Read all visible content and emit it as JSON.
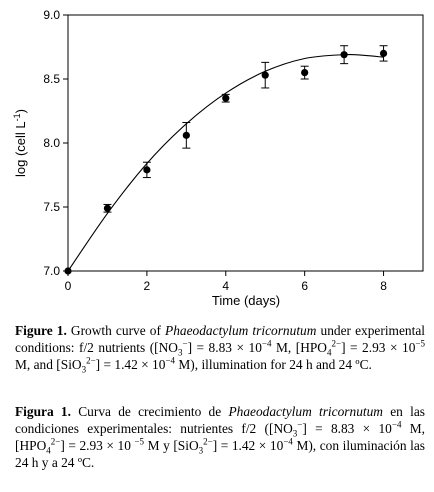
{
  "chart_data": {
    "type": "scatter",
    "xlabel": "Time (days)",
    "ylabel_main": "log (cell L",
    "ylabel_sup": "-1",
    "ylabel_close": ")",
    "xlim": [
      0,
      9
    ],
    "ylim": [
      7.0,
      9.0
    ],
    "x_ticks": [
      0,
      2,
      4,
      6,
      8
    ],
    "x_tick_labels": [
      "0",
      "2",
      "4",
      "6",
      "8"
    ],
    "y_ticks": [
      7.0,
      7.5,
      8.0,
      8.5,
      9.0
    ],
    "y_tick_labels": [
      "7.0",
      "7.5",
      "8.0",
      "8.5",
      "9.0"
    ],
    "grid": false,
    "points": [
      {
        "x": 0,
        "y": 7.0,
        "err": 0.0
      },
      {
        "x": 1,
        "y": 7.49,
        "err": 0.03
      },
      {
        "x": 2,
        "y": 7.79,
        "err": 0.06
      },
      {
        "x": 3,
        "y": 8.06,
        "err": 0.1
      },
      {
        "x": 4,
        "y": 8.35,
        "err": 0.03
      },
      {
        "x": 5,
        "y": 8.53,
        "err": 0.1
      },
      {
        "x": 6,
        "y": 8.55,
        "err": 0.05
      },
      {
        "x": 7,
        "y": 8.69,
        "err": 0.07
      },
      {
        "x": 8,
        "y": 8.7,
        "err": 0.06
      }
    ],
    "fit_curve": {
      "x": [
        0,
        1,
        2,
        3,
        4,
        5,
        6,
        7,
        7.5,
        8
      ],
      "y": [
        7.0,
        7.45,
        7.84,
        8.15,
        8.39,
        8.56,
        8.66,
        8.69,
        8.685,
        8.67
      ]
    }
  },
  "caption_en": {
    "label": "Figure 1.",
    "t1": " Growth curve of ",
    "species": "Phaeodactylum tricornutum",
    "t2": " under experimental conditions: f/2 nutrients ([NO",
    "no3_sub": "3",
    "no3_sup": "−",
    "t3": "] = 8.83 × 10",
    "exp1": "−4",
    "t4": " M, [HPO",
    "hpo_sub": "4",
    "hpo_sup": "2−",
    "t5": "] = 2.93 × 10",
    "exp2": "−5",
    "t6": " M, and [SiO",
    "sio_sub": "3",
    "sio_sup": "2−",
    "t7": "] = 1.42 × 10",
    "exp3": "−4",
    "t8": " M), illumination for 24 h and 24 ºC."
  },
  "caption_es": {
    "label": "Figura 1.",
    "t1": " Curva de crecimiento de ",
    "species": "Phaeodactylum tricornutum",
    "t2": " en las condiciones experimentales: nutrientes f/2 ([NO",
    "no3_sub": "3",
    "no3_sup": "−",
    "t3": "] = 8.83 × 10",
    "exp1": "−4",
    "t4": " M, [HPO",
    "hpo_sub": "4",
    "hpo_sup": "2−",
    "t5": "] =  2.93 × 10 ",
    "exp2": "−5",
    "t6": " M y [SiO",
    "sio_sub": "3",
    "sio_sup": "2−",
    "t7": "] = 1.42 × 10",
    "exp3": "−4",
    "t8": " M), con iluminación las 24 h y a 24 ºC."
  }
}
